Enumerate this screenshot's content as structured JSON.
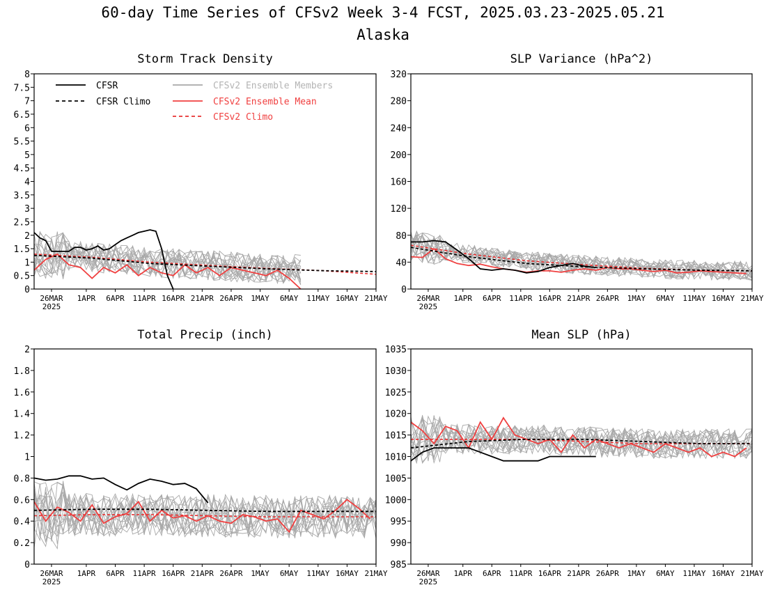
{
  "title": "60-day Time Series of CFSv2 Week 3-4 FCST, 2025.03.23-2025.05.21",
  "subtitle": "Alaska",
  "x_tick_labels": [
    "26MAR",
    "1APR",
    "6APR",
    "11APR",
    "16APR",
    "21APR",
    "26APR",
    "1MAY",
    "6MAY",
    "11MAY",
    "16MAY",
    "21MAY"
  ],
  "x_year_label": "2025",
  "legend": {
    "cfsr": "CFSR",
    "cfsr_climo": "CFSR Climo",
    "ens_members": "CFSv2 Ensemble Members",
    "ens_mean": "CFSv2 Ensemble Mean",
    "cfsv2_climo": "CFSv2 Climo"
  },
  "colors": {
    "cfsr": "#000000",
    "ens_member": "#a8a8a8",
    "ens_mean": "#f04040",
    "cfsv2_climo": "#e83030",
    "legend_member_text": "#b4b4b4",
    "legend_red_text": "#f04040"
  },
  "chart_data": [
    {
      "type": "line",
      "title": "Storm Track Density",
      "x_days": [
        0,
        59
      ],
      "ylim": [
        0,
        8
      ],
      "y_ticks": [
        "0",
        "0.5",
        "1",
        "1.5",
        "2",
        "2.5",
        "3",
        "3.5",
        "4",
        "4.5",
        "5",
        "5.5",
        "6",
        "6.5",
        "7",
        "7.5",
        "8"
      ],
      "legend_position": "top-left",
      "series": [
        {
          "name": "CFSR",
          "x": [
            0,
            1,
            2,
            3,
            4,
            5,
            6,
            7,
            8,
            9,
            10,
            11,
            12,
            13,
            14,
            15,
            16,
            17,
            18,
            19,
            20,
            21,
            22,
            23,
            24
          ],
          "values": [
            2.1,
            1.9,
            1.8,
            1.4,
            1.4,
            1.4,
            1.4,
            1.55,
            1.55,
            1.45,
            1.5,
            1.6,
            1.45,
            1.5,
            1.65,
            1.8,
            1.9,
            2.0,
            2.1,
            2.15,
            2.2,
            2.15,
            1.5,
            0.5,
            0.0
          ]
        },
        {
          "name": "CFSR Climo",
          "x": [
            0,
            10,
            20,
            30,
            40,
            50,
            59
          ],
          "values": [
            1.25,
            1.15,
            0.95,
            0.85,
            0.75,
            0.68,
            0.65
          ]
        },
        {
          "name": "CFSv2 Ensemble Mean",
          "x": [
            0,
            2,
            4,
            6,
            8,
            10,
            12,
            14,
            16,
            18,
            20,
            22,
            24,
            26,
            28,
            30,
            32,
            34,
            36,
            38,
            40,
            42,
            44,
            46
          ],
          "values": [
            0.7,
            1.1,
            1.3,
            0.9,
            0.8,
            0.4,
            0.8,
            0.6,
            0.9,
            0.5,
            0.8,
            0.6,
            0.5,
            0.9,
            0.6,
            0.8,
            0.5,
            0.8,
            0.7,
            0.6,
            0.5,
            0.7,
            0.4,
            0.0
          ]
        },
        {
          "name": "CFSv2 Climo",
          "x": [
            0,
            10,
            20,
            30,
            40,
            50,
            59
          ],
          "values": [
            1.3,
            1.18,
            1.0,
            0.88,
            0.77,
            0.68,
            0.55
          ]
        }
      ]
    },
    {
      "type": "line",
      "title": "SLP Variance (hPa^2)",
      "x_days": [
        0,
        59
      ],
      "ylim": [
        0,
        320
      ],
      "y_ticks": [
        "0",
        "40",
        "80",
        "120",
        "160",
        "200",
        "240",
        "280",
        "320"
      ],
      "series": [
        {
          "name": "CFSR",
          "x": [
            0,
            2,
            4,
            6,
            8,
            10,
            12,
            14,
            16,
            18,
            20,
            22,
            24,
            26,
            28,
            30,
            32
          ],
          "values": [
            70,
            70,
            72,
            70,
            58,
            45,
            30,
            28,
            30,
            28,
            24,
            26,
            32,
            35,
            38,
            34,
            32
          ]
        },
        {
          "name": "CFSR Climo",
          "x": [
            0,
            10,
            20,
            30,
            40,
            50,
            59
          ],
          "values": [
            62,
            48,
            38,
            33,
            30,
            28,
            27
          ]
        },
        {
          "name": "CFSv2 Ensemble Mean",
          "x": [
            0,
            2,
            4,
            6,
            8,
            10,
            12,
            14,
            16,
            18,
            20,
            22,
            24,
            26,
            28,
            30,
            32,
            34,
            36,
            38,
            40,
            42,
            44,
            46,
            48,
            50,
            52,
            54,
            56,
            58
          ],
          "values": [
            48,
            47,
            60,
            45,
            38,
            35,
            37,
            33,
            30,
            28,
            25,
            27,
            27,
            25,
            28,
            30,
            28,
            32,
            30,
            30,
            28,
            26,
            28,
            24,
            25,
            27,
            26,
            25,
            24,
            23
          ]
        },
        {
          "name": "CFSv2 Climo",
          "x": [
            0,
            10,
            20,
            30,
            40,
            50,
            59
          ],
          "values": [
            65,
            52,
            42,
            36,
            31,
            28,
            27
          ]
        }
      ]
    },
    {
      "type": "line",
      "title": "Total Precip (inch)",
      "x_days": [
        0,
        59
      ],
      "ylim": [
        0,
        2
      ],
      "y_ticks": [
        "0",
        "0.2",
        "0.4",
        "0.6",
        "0.8",
        "1",
        "1.2",
        "1.4",
        "1.6",
        "1.8",
        "2"
      ],
      "series": [
        {
          "name": "CFSR",
          "x": [
            0,
            2,
            4,
            6,
            8,
            10,
            12,
            14,
            16,
            18,
            20,
            22,
            24,
            26,
            28,
            30
          ],
          "values": [
            0.8,
            0.78,
            0.79,
            0.82,
            0.82,
            0.79,
            0.8,
            0.74,
            0.69,
            0.75,
            0.79,
            0.77,
            0.74,
            0.75,
            0.7,
            0.57
          ]
        },
        {
          "name": "CFSR Climo",
          "x": [
            0,
            10,
            20,
            30,
            40,
            50,
            59
          ],
          "values": [
            0.5,
            0.51,
            0.51,
            0.5,
            0.49,
            0.49,
            0.49
          ]
        },
        {
          "name": "CFSv2 Ensemble Mean",
          "x": [
            0,
            2,
            4,
            6,
            8,
            10,
            12,
            14,
            16,
            18,
            20,
            22,
            24,
            26,
            28,
            30,
            32,
            34,
            36,
            38,
            40,
            42,
            44,
            46,
            48,
            50,
            52,
            54,
            56,
            58
          ],
          "values": [
            0.58,
            0.4,
            0.53,
            0.48,
            0.4,
            0.55,
            0.38,
            0.44,
            0.47,
            0.58,
            0.4,
            0.5,
            0.43,
            0.45,
            0.4,
            0.45,
            0.4,
            0.38,
            0.46,
            0.44,
            0.4,
            0.42,
            0.3,
            0.5,
            0.46,
            0.42,
            0.5,
            0.6,
            0.52,
            0.42
          ]
        },
        {
          "name": "CFSv2 Climo",
          "x": [
            0,
            10,
            20,
            30,
            40,
            50,
            59
          ],
          "values": [
            0.45,
            0.46,
            0.46,
            0.45,
            0.44,
            0.44,
            0.44
          ]
        }
      ]
    },
    {
      "type": "line",
      "title": "Mean SLP (hPa)",
      "x_days": [
        0,
        59
      ],
      "ylim": [
        985,
        1035
      ],
      "y_ticks": [
        "985",
        "990",
        "995",
        "1000",
        "1005",
        "1010",
        "1015",
        "1020",
        "1025",
        "1030",
        "1035"
      ],
      "series": [
        {
          "name": "CFSR",
          "x": [
            0,
            2,
            4,
            6,
            8,
            10,
            12,
            14,
            16,
            18,
            20,
            22,
            24,
            26,
            28,
            30,
            32
          ],
          "values": [
            1009,
            1011,
            1012,
            1012,
            1012,
            1012,
            1011,
            1010,
            1009,
            1009,
            1009,
            1009,
            1010,
            1010,
            1010,
            1010,
            1010
          ]
        },
        {
          "name": "CFSR Climo",
          "x": [
            0,
            10,
            20,
            30,
            40,
            50,
            59
          ],
          "values": [
            1012,
            1013.5,
            1014,
            1014,
            1013.5,
            1013,
            1013
          ]
        },
        {
          "name": "CFSv2 Ensemble Mean",
          "x": [
            0,
            2,
            4,
            6,
            8,
            10,
            12,
            14,
            16,
            18,
            20,
            22,
            24,
            26,
            28,
            30,
            32,
            34,
            36,
            38,
            40,
            42,
            44,
            46,
            48,
            50,
            52,
            54,
            56,
            58
          ],
          "values": [
            1018,
            1016,
            1013,
            1017,
            1016,
            1012,
            1018,
            1014,
            1019,
            1015,
            1014,
            1013,
            1014,
            1011,
            1015,
            1012,
            1014,
            1013,
            1012,
            1013,
            1012,
            1011,
            1013,
            1012,
            1011,
            1012,
            1010,
            1011,
            1010,
            1012
          ]
        },
        {
          "name": "CFSv2 Climo",
          "x": [
            0,
            10,
            20,
            30,
            40,
            50,
            59
          ],
          "values": [
            1014,
            1014,
            1014,
            1013.5,
            1013,
            1013,
            1013
          ]
        }
      ]
    }
  ]
}
